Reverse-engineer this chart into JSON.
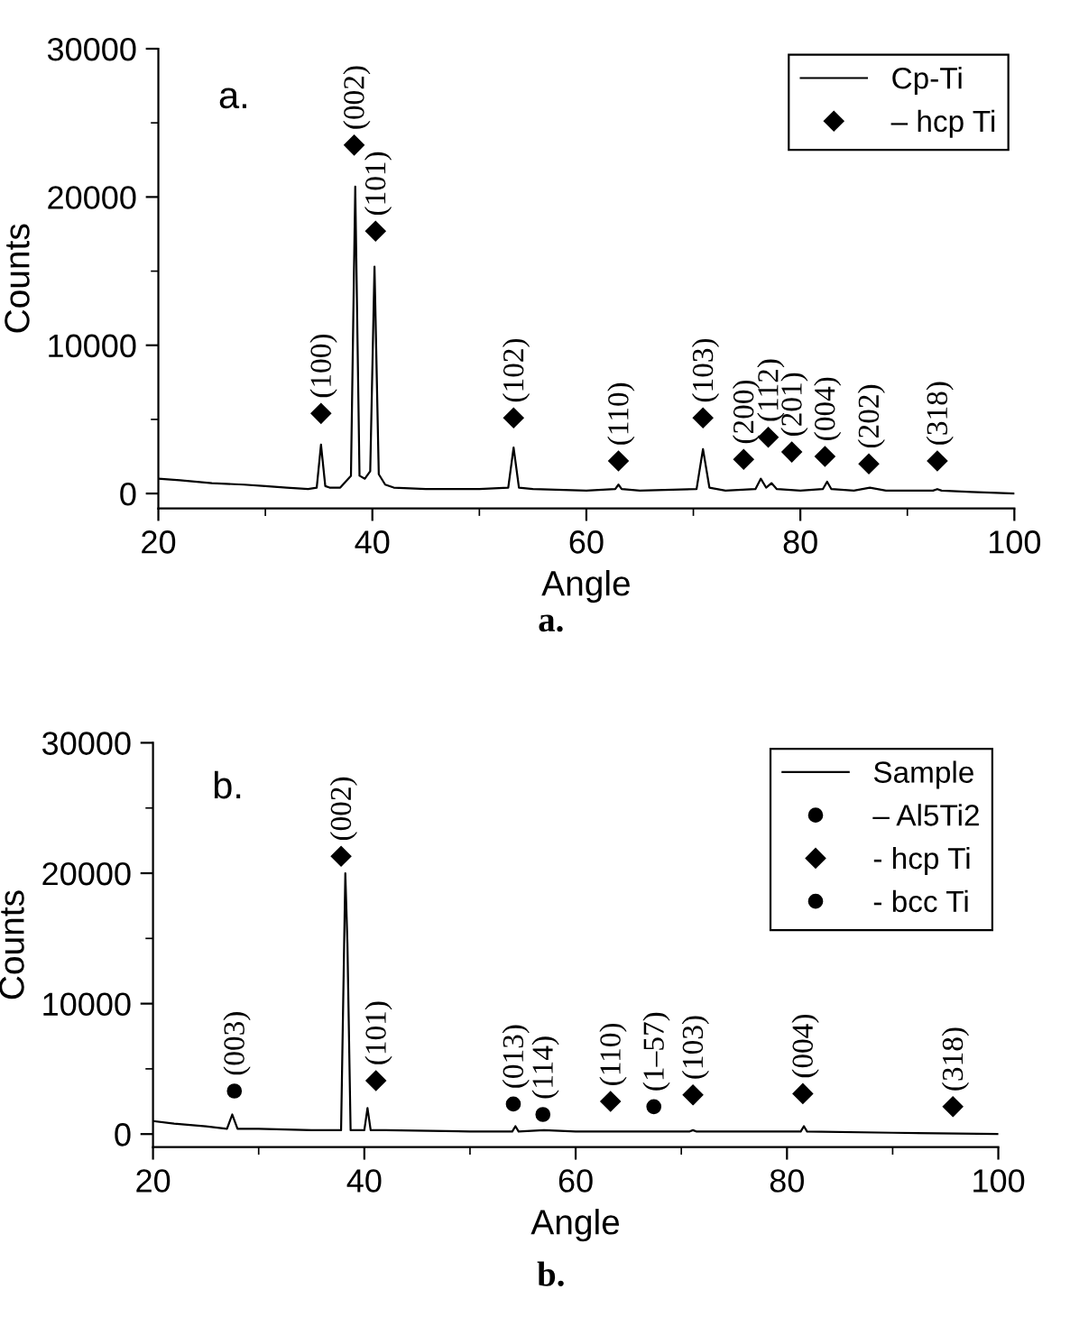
{
  "chart_data": [
    {
      "type": "line",
      "xlabel": "Angle",
      "ylabel": "Counts",
      "xlim": [
        20,
        100
      ],
      "ylim": [
        -1000,
        30000
      ],
      "xticks": [
        20,
        {
          "value": 30,
          "label": null
        },
        40,
        {
          "value": 50,
          "label": null
        },
        60,
        {
          "value": 70,
          "label": null
        },
        80,
        {
          "value": 90,
          "label": null
        },
        100
      ],
      "yticks": [
        0,
        {
          "value": 5000,
          "label": null
        },
        10000,
        {
          "value": 15000,
          "label": null
        },
        20000,
        {
          "value": 25000,
          "label": null
        },
        30000
      ],
      "grid": false,
      "legend": "top right",
      "series": [
        {
          "name": "Cp-Ti",
          "type": "line",
          "color": "#000000",
          "marker": "none",
          "x": [
            20,
            22,
            25,
            28,
            30,
            32,
            34,
            34.8,
            35.2,
            35.6,
            36,
            37,
            38.0,
            38.4,
            38.8,
            39.3,
            39.8,
            40.2,
            40.6,
            41.2,
            42,
            45,
            50,
            52.7,
            53.2,
            53.7,
            55,
            60,
            62.7,
            63,
            63.3,
            65,
            70.3,
            70.9,
            71.5,
            73,
            75.8,
            76.3,
            76.8,
            77.3,
            77.8,
            80,
            82.1,
            82.5,
            82.9,
            85,
            86.5,
            88,
            92.4,
            92.8,
            93.2,
            96,
            100
          ],
          "values": [
            1000,
            900,
            700,
            600,
            500,
            400,
            300,
            400,
            3300,
            500,
            400,
            400,
            1200,
            20700,
            1200,
            1000,
            1500,
            15300,
            1300,
            600,
            400,
            300,
            300,
            400,
            3100,
            400,
            300,
            200,
            300,
            600,
            300,
            200,
            300,
            3000,
            400,
            200,
            300,
            1000,
            400,
            700,
            300,
            200,
            300,
            800,
            300,
            200,
            400,
            200,
            200,
            300,
            200,
            100,
            0
          ]
        },
        {
          "name": "– hcp Ti",
          "type": "scatter",
          "color": "#000000",
          "marker": "diamond",
          "x": [
            35.2,
            38.3,
            40.3,
            53.2,
            63,
            70.9,
            74.7,
            77,
            79.2,
            82.3,
            86.4,
            92.8
          ],
          "values": [
            5400,
            23500,
            17700,
            5100,
            2200,
            5100,
            2300,
            3800,
            2800,
            2500,
            2000,
            2200
          ]
        }
      ],
      "annotations": [
        "a.",
        "a.",
        "(100)",
        "(002)",
        "(101)",
        "(102)",
        "(110)",
        "(103)",
        "(200)",
        "(112)",
        "(201)",
        "(004)",
        "(202)",
        "(318)"
      ]
    },
    {
      "type": "line",
      "xlabel": "Angle",
      "ylabel": "Counts",
      "xlim": [
        20,
        100
      ],
      "ylim": [
        -1000,
        30000
      ],
      "xticks": [
        20,
        {
          "value": 30,
          "label": null
        },
        40,
        {
          "value": 50,
          "label": null
        },
        60,
        {
          "value": 70,
          "label": null
        },
        80,
        {
          "value": 90,
          "label": null
        },
        100
      ],
      "yticks": [
        0,
        {
          "value": 5000,
          "label": null
        },
        10000,
        {
          "value": 15000,
          "label": null
        },
        20000,
        {
          "value": 25000,
          "label": null
        },
        30000
      ],
      "grid": false,
      "legend": "top right",
      "series": [
        {
          "name": "Sample",
          "type": "line",
          "color": "#000000",
          "marker": "none",
          "x": [
            20,
            22,
            25,
            27,
            27.5,
            28,
            30,
            35,
            37.8,
            38.2,
            38.4,
            38.7,
            39.5,
            40,
            40.3,
            40.6,
            42,
            50,
            54,
            54.3,
            54.6,
            57,
            60,
            70.8,
            71.1,
            71.4,
            80,
            81.3,
            81.6,
            81.9,
            90,
            100
          ],
          "values": [
            1000,
            800,
            600,
            400,
            1500,
            400,
            400,
            300,
            300,
            20000,
            14600,
            300,
            300,
            300,
            2000,
            300,
            300,
            200,
            200,
            600,
            200,
            300,
            200,
            200,
            300,
            200,
            200,
            200,
            600,
            200,
            100,
            0
          ]
        },
        {
          "name": "– Al5Ti2",
          "type": "scatter",
          "color": "#000000",
          "marker": "circle",
          "x": [
            27.7
          ],
          "values": [
            3300
          ]
        },
        {
          "name": "- hcp Ti",
          "type": "scatter",
          "color": "#000000",
          "marker": "diamond",
          "x": [
            37.8,
            41.1,
            63.3,
            71.1,
            81.5,
            95.7
          ],
          "values": [
            21300,
            4100,
            2500,
            3000,
            3100,
            2100
          ]
        },
        {
          "name": "- bcc Ti",
          "type": "scatter",
          "color": "#000000",
          "marker": "circle",
          "x": [
            54.1,
            56.9,
            67.4
          ],
          "values": [
            2300,
            1500,
            2100
          ]
        }
      ],
      "annotations": [
        "b.",
        "b.",
        "(003)",
        "(002)",
        "(101)",
        "(013)",
        "(114)",
        "(110)",
        "(1–57)",
        "(103)",
        "(004)",
        "(318)"
      ]
    }
  ]
}
